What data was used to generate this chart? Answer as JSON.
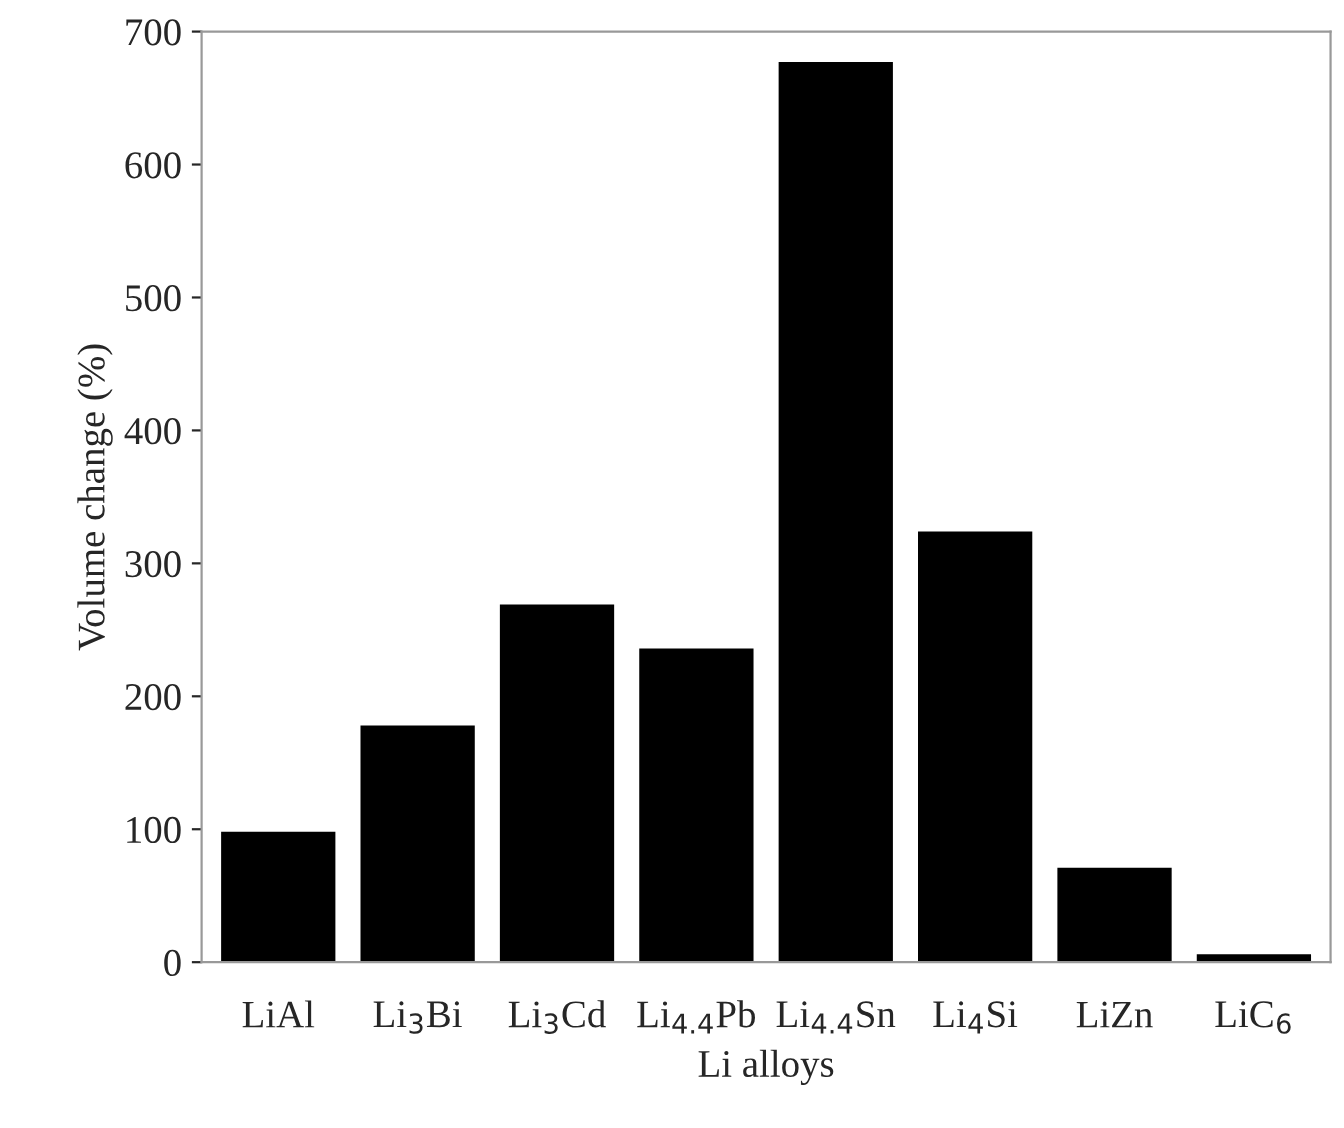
{
  "chart_data": {
    "type": "bar",
    "xlabel": "Li alloys",
    "ylabel": "Volume change (%)",
    "categories": [
      "LiAl",
      "Li$_{3}$Bi",
      "Li$_{3}$Cd",
      "Li$_{4.4}$Pb",
      "Li$_{4.4}$Sn",
      "Li$_{4}$Si",
      "LiZn",
      "LiC$_{6}$"
    ],
    "values": [
      97,
      177,
      268,
      235,
      676,
      323,
      70,
      5
    ],
    "color": "#000000",
    "ylim": [
      0,
      700
    ],
    "yticks": [
      0,
      100,
      200,
      300,
      400,
      500,
      600,
      700
    ],
    "grid": false,
    "legend": false
  }
}
